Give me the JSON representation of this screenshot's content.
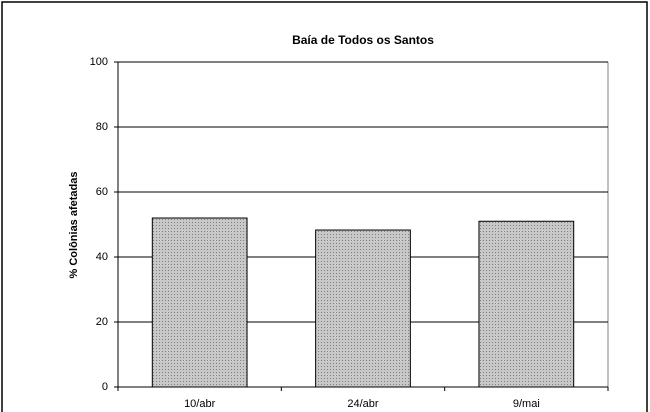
{
  "chart_data": {
    "type": "bar",
    "title": "Baía de Todos os Santos",
    "y_label": "% Colônias afetadas",
    "categories": [
      "10/abr",
      "24/abr",
      "9/mai"
    ],
    "values": [
      52,
      48.3,
      51
    ],
    "color": "#c8c8c8",
    "ylim": [
      0,
      100
    ],
    "yticks": [
      0,
      20,
      40,
      60,
      80,
      100
    ],
    "grid": true
  }
}
